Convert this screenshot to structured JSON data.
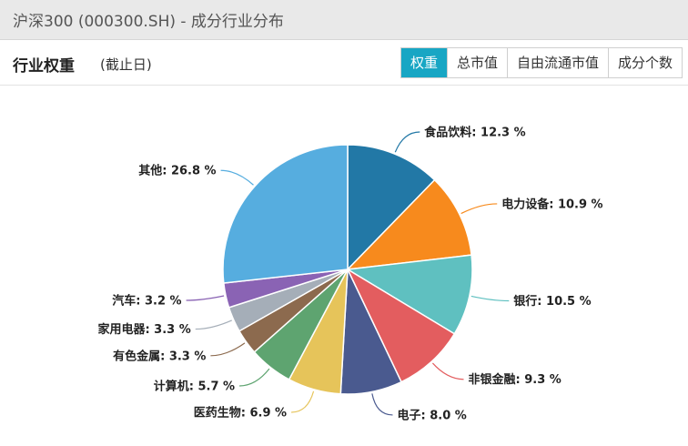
{
  "window": {
    "title": "沪深300 (000300.SH) - 成分行业分布"
  },
  "header": {
    "title": "行业权重",
    "subtitle": "(截止日)"
  },
  "tabs": [
    {
      "label": "权重",
      "active": true
    },
    {
      "label": "总市值",
      "active": false
    },
    {
      "label": "自由流通市值",
      "active": false
    },
    {
      "label": "成分个数",
      "active": false
    }
  ],
  "chart_data": {
    "type": "pie",
    "title": "",
    "unit": "%",
    "slices": [
      {
        "name": "食品饮料",
        "value": 12.3,
        "label": "食品饮料: 12.3 %",
        "color": "#2278a6"
      },
      {
        "name": "电力设备",
        "value": 10.9,
        "label": "电力设备: 10.9 %",
        "color": "#f78a1d"
      },
      {
        "name": "银行",
        "value": 10.5,
        "label": "银行: 10.5 %",
        "color": "#5fc0c0"
      },
      {
        "name": "非银金融",
        "value": 9.3,
        "label": "非银金融: 9.3 %",
        "color": "#e35d5f"
      },
      {
        "name": "电子",
        "value": 8.0,
        "label": "电子: 8.0 %",
        "color": "#4a5a8f"
      },
      {
        "name": "医药生物",
        "value": 6.9,
        "label": "医药生物: 6.9 %",
        "color": "#e6c45a"
      },
      {
        "name": "计算机",
        "value": 5.7,
        "label": "计算机: 5.7 %",
        "color": "#5ea470"
      },
      {
        "name": "有色金属",
        "value": 3.3,
        "label": "有色金属: 3.3 %",
        "color": "#8c6a4e"
      },
      {
        "name": "家用电器",
        "value": 3.3,
        "label": "家用电器: 3.3 %",
        "color": "#a5aeb8"
      },
      {
        "name": "汽车",
        "value": 3.2,
        "label": "汽车: 3.2 %",
        "color": "#8a63b4"
      },
      {
        "name": "其他",
        "value": 26.8,
        "label": "其他: 26.8 %",
        "color": "#56addf"
      }
    ]
  }
}
